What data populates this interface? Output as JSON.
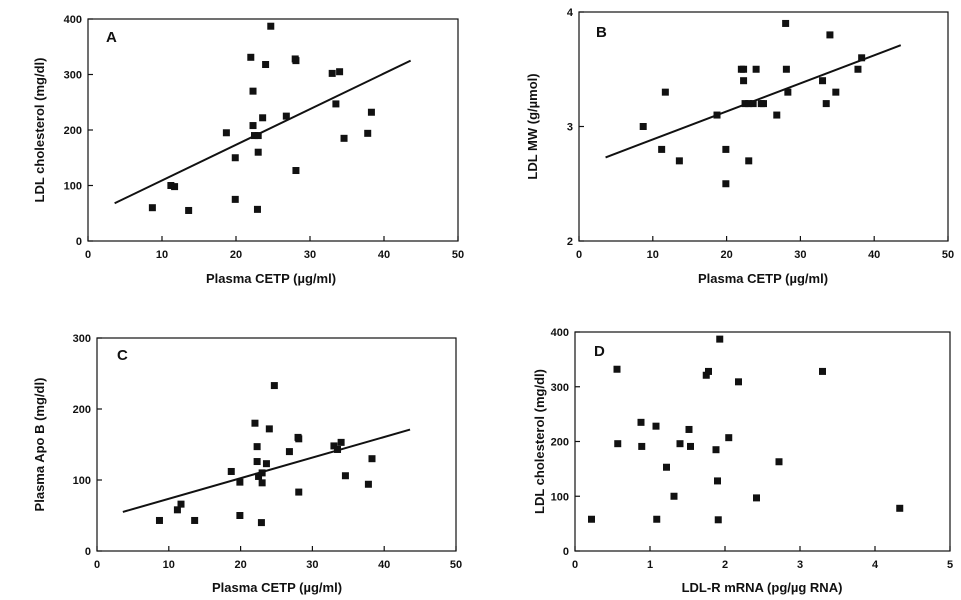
{
  "chart_data": [
    {
      "panel_label": "A",
      "type": "scatter",
      "xlabel": "Plasma CETP (µg/ml)",
      "ylabel": "LDL cholesterol (mg/dl)",
      "xlim": [
        0,
        50
      ],
      "ylim": [
        0,
        400
      ],
      "xticks": [
        0,
        10,
        20,
        30,
        40,
        50
      ],
      "yticks": [
        0,
        100,
        200,
        300,
        400
      ],
      "points": [
        [
          8.7,
          60
        ],
        [
          11.2,
          100
        ],
        [
          11.7,
          98
        ],
        [
          13.6,
          55
        ],
        [
          18.7,
          195
        ],
        [
          19.9,
          150
        ],
        [
          19.9,
          75
        ],
        [
          22.0,
          331
        ],
        [
          22.3,
          270
        ],
        [
          22.3,
          208
        ],
        [
          22.5,
          190
        ],
        [
          23.0,
          190
        ],
        [
          23.0,
          160
        ],
        [
          22.9,
          57
        ],
        [
          23.6,
          222
        ],
        [
          24.0,
          318
        ],
        [
          24.7,
          387
        ],
        [
          26.8,
          225
        ],
        [
          28.0,
          328
        ],
        [
          28.1,
          325
        ],
        [
          28.1,
          127
        ],
        [
          33.0,
          302
        ],
        [
          33.5,
          247
        ],
        [
          34.0,
          305
        ],
        [
          34.6,
          185
        ],
        [
          37.8,
          194
        ],
        [
          38.3,
          232
        ]
      ],
      "fit_line": [
        [
          3.6,
          68
        ],
        [
          43.6,
          325
        ]
      ]
    },
    {
      "panel_label": "B",
      "type": "scatter",
      "xlabel": "Plasma CETP (µg/ml)",
      "ylabel": "LDL MW (g/µmol)",
      "xlim": [
        0,
        50
      ],
      "ylim": [
        2,
        4
      ],
      "xticks": [
        0,
        10,
        20,
        30,
        40,
        50
      ],
      "yticks": [
        2,
        3,
        4
      ],
      "points": [
        [
          8.7,
          3.0
        ],
        [
          11.2,
          2.8
        ],
        [
          11.7,
          3.3
        ],
        [
          13.6,
          2.7
        ],
        [
          18.7,
          3.1
        ],
        [
          19.9,
          2.8
        ],
        [
          19.9,
          2.5
        ],
        [
          22.0,
          3.5
        ],
        [
          22.3,
          3.5
        ],
        [
          22.3,
          3.4
        ],
        [
          22.5,
          3.2
        ],
        [
          23.0,
          3.2
        ],
        [
          23.0,
          2.7
        ],
        [
          23.6,
          3.2
        ],
        [
          24.0,
          3.5
        ],
        [
          24.7,
          3.2
        ],
        [
          25.0,
          3.2
        ],
        [
          26.8,
          3.1
        ],
        [
          28.0,
          3.9
        ],
        [
          28.1,
          3.5
        ],
        [
          28.3,
          3.3
        ],
        [
          33.0,
          3.4
        ],
        [
          33.5,
          3.2
        ],
        [
          34.0,
          3.8
        ],
        [
          34.8,
          3.3
        ],
        [
          37.8,
          3.5
        ],
        [
          38.3,
          3.6
        ]
      ],
      "fit_line": [
        [
          3.6,
          2.73
        ],
        [
          43.6,
          3.71
        ]
      ]
    },
    {
      "panel_label": "C",
      "type": "scatter",
      "xlabel": "Plasma CETP (µg/ml)",
      "ylabel": "Plasma Apo B (mg/dl)",
      "xlim": [
        0,
        50
      ],
      "ylim": [
        0,
        300
      ],
      "xticks": [
        0,
        10,
        20,
        30,
        40,
        50
      ],
      "yticks": [
        0,
        100,
        200,
        300
      ],
      "points": [
        [
          8.7,
          43
        ],
        [
          11.2,
          58
        ],
        [
          11.7,
          66
        ],
        [
          13.6,
          43
        ],
        [
          18.7,
          112
        ],
        [
          19.9,
          97
        ],
        [
          19.9,
          50
        ],
        [
          22.0,
          180
        ],
        [
          22.3,
          147
        ],
        [
          22.3,
          126
        ],
        [
          22.5,
          105
        ],
        [
          23.0,
          110
        ],
        [
          23.0,
          96
        ],
        [
          22.9,
          40
        ],
        [
          23.6,
          123
        ],
        [
          24.0,
          172
        ],
        [
          24.7,
          233
        ],
        [
          26.8,
          140
        ],
        [
          28.0,
          160
        ],
        [
          28.1,
          158
        ],
        [
          28.1,
          83
        ],
        [
          33.0,
          148
        ],
        [
          33.5,
          143
        ],
        [
          34.0,
          153
        ],
        [
          34.6,
          106
        ],
        [
          37.8,
          94
        ],
        [
          38.3,
          130
        ]
      ],
      "fit_line": [
        [
          3.6,
          55
        ],
        [
          43.6,
          171
        ]
      ]
    },
    {
      "panel_label": "D",
      "type": "scatter",
      "xlabel": "LDL-R mRNA (pg/µg  RNA)",
      "ylabel": "LDL cholesterol (mg/dl)",
      "xlim": [
        0,
        5
      ],
      "ylim": [
        0,
        400
      ],
      "xticks": [
        0,
        1,
        2,
        3,
        4,
        5
      ],
      "yticks": [
        0,
        100,
        200,
        300,
        400
      ],
      "points": [
        [
          0.22,
          58
        ],
        [
          0.56,
          332
        ],
        [
          0.57,
          196
        ],
        [
          0.88,
          235
        ],
        [
          0.89,
          191
        ],
        [
          1.08,
          228
        ],
        [
          1.09,
          58
        ],
        [
          1.22,
          153
        ],
        [
          1.32,
          100
        ],
        [
          1.4,
          196
        ],
        [
          1.52,
          222
        ],
        [
          1.54,
          191
        ],
        [
          1.75,
          321
        ],
        [
          1.78,
          328
        ],
        [
          1.88,
          185
        ],
        [
          1.9,
          128
        ],
        [
          1.91,
          57
        ],
        [
          1.93,
          387
        ],
        [
          2.05,
          207
        ],
        [
          2.18,
          309
        ],
        [
          2.42,
          97
        ],
        [
          2.72,
          163
        ],
        [
          3.3,
          328
        ],
        [
          4.33,
          78
        ]
      ]
    }
  ]
}
